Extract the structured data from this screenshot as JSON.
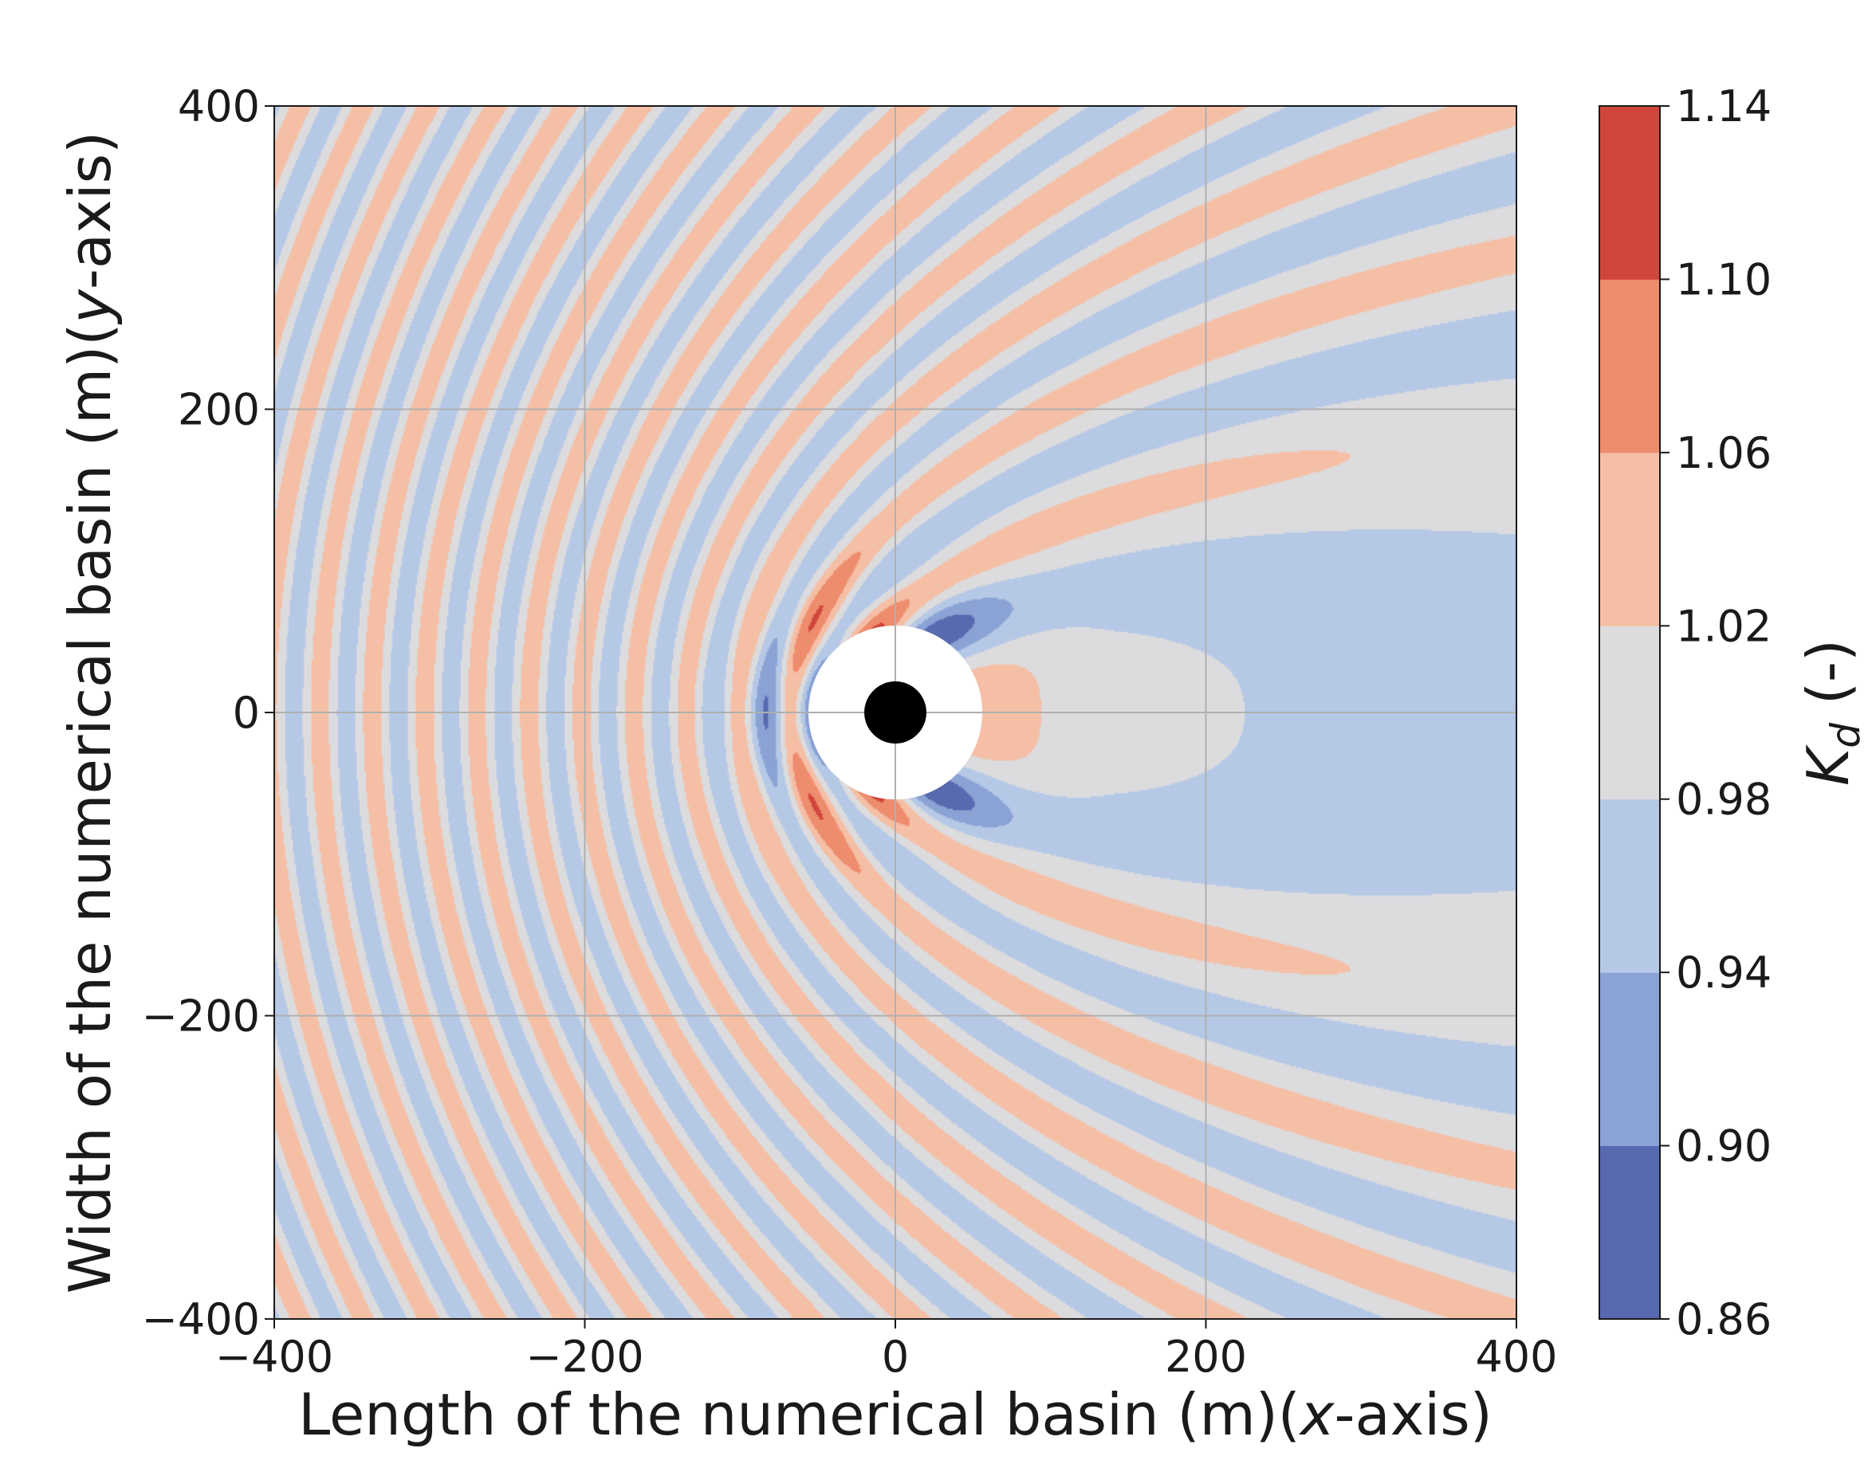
{
  "chart_data": {
    "type": "heatmap",
    "subtype": "filled-contour",
    "title": "",
    "xlabel": {
      "pre": "Length of the numerical basin (m)(",
      "var": "x",
      "post": "-axis)"
    },
    "ylabel": {
      "pre": "Width of the numerical basin (m)(",
      "var": "y",
      "post": "-axis)"
    },
    "xlim": [
      -400,
      400
    ],
    "ylim": [
      -400,
      400
    ],
    "xticks": [
      {
        "value": -400,
        "label": "−400"
      },
      {
        "value": -200,
        "label": "−200"
      },
      {
        "value": 0,
        "label": "0"
      },
      {
        "value": 200,
        "label": "200"
      },
      {
        "value": 400,
        "label": "400"
      }
    ],
    "yticks": [
      {
        "value": -400,
        "label": "−400"
      },
      {
        "value": -200,
        "label": "−200"
      },
      {
        "value": 0,
        "label": "0"
      },
      {
        "value": 200,
        "label": "200"
      },
      {
        "value": 400,
        "label": "400"
      }
    ],
    "grid": true,
    "structure": {
      "outer_radius": 56,
      "inner_radius": 20
    },
    "colorbar": {
      "label": {
        "var": "K",
        "sub": "d",
        "post": " (-)"
      },
      "levels": [
        0.86,
        0.9,
        0.94,
        0.98,
        1.02,
        1.06,
        1.1,
        1.14
      ],
      "tick_labels": [
        "0.86",
        "0.90",
        "0.94",
        "0.98",
        "1.02",
        "1.06",
        "1.10",
        "1.14"
      ],
      "colors": [
        "#5869b0",
        "#8aa2d4",
        "#b5c8e6",
        "#dcdcde",
        "#f5bfa6",
        "#ee8c6e",
        "#d0463c"
      ]
    }
  }
}
